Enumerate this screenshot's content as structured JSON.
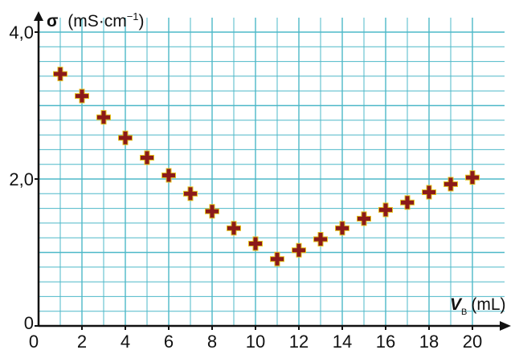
{
  "chart_data": {
    "type": "scatter",
    "ylabel": {
      "symbol": "σ",
      "unit_prefix": "(mS·cm",
      "unit_exponent": "−1",
      "unit_suffix": ")"
    },
    "xlabel": {
      "symbol": "V",
      "subscript": "B",
      "unit": "(mL)"
    },
    "x_ticks": [
      "0",
      "2",
      "4",
      "6",
      "8",
      "10",
      "12",
      "14",
      "16",
      "18",
      "20"
    ],
    "y_ticks": [
      "0",
      "2,0",
      "4,0"
    ],
    "xlim": [
      0,
      20.5
    ],
    "ylim": [
      0,
      4.0
    ],
    "grid": true,
    "grid_color": "#4db8c8",
    "axis_color": "#111111",
    "marker": "cross",
    "marker_color": "#8b1a1a",
    "marker_outline_color": "#e6c21a",
    "points": [
      {
        "x": 1,
        "y": 3.43
      },
      {
        "x": 2,
        "y": 3.13
      },
      {
        "x": 3,
        "y": 2.84
      },
      {
        "x": 4,
        "y": 2.56
      },
      {
        "x": 5,
        "y": 2.29
      },
      {
        "x": 6,
        "y": 2.05
      },
      {
        "x": 7,
        "y": 1.8
      },
      {
        "x": 8,
        "y": 1.56
      },
      {
        "x": 9,
        "y": 1.33
      },
      {
        "x": 10,
        "y": 1.12
      },
      {
        "x": 11,
        "y": 0.91
      },
      {
        "x": 12,
        "y": 1.03
      },
      {
        "x": 13,
        "y": 1.18
      },
      {
        "x": 14,
        "y": 1.33
      },
      {
        "x": 15,
        "y": 1.46
      },
      {
        "x": 16,
        "y": 1.58
      },
      {
        "x": 17,
        "y": 1.68
      },
      {
        "x": 18,
        "y": 1.82
      },
      {
        "x": 19,
        "y": 1.93
      },
      {
        "x": 20,
        "y": 2.02
      }
    ]
  }
}
